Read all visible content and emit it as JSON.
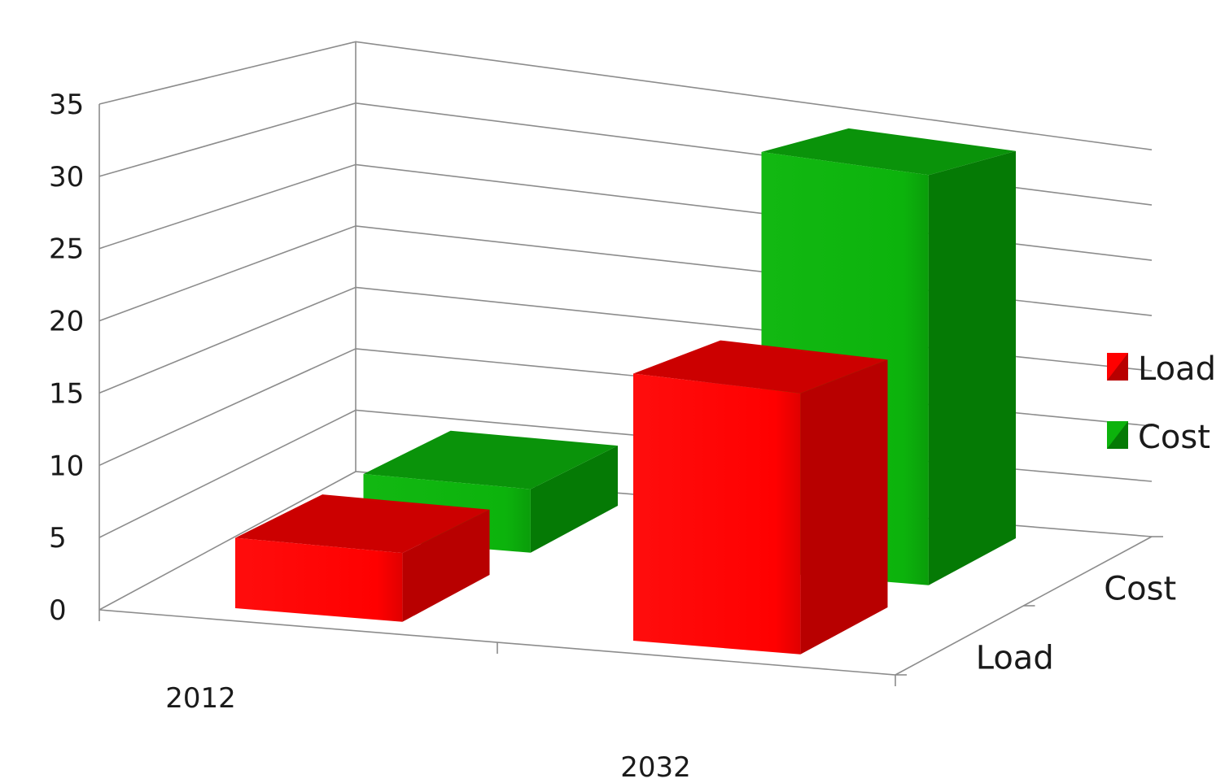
{
  "chart_data": {
    "type": "bar",
    "subtype": "3d-column",
    "title": "",
    "xlabel": "",
    "ylabel": "",
    "categories": [
      "2012",
      "2032"
    ],
    "depth_labels": [
      "Load",
      "Cost"
    ],
    "series": [
      {
        "name": "Load",
        "values": [
          5,
          20
        ],
        "color": "#ff0000",
        "side_color": "#b80000",
        "top_color": "#cc0000"
      },
      {
        "name": "Cost",
        "values": [
          5,
          34
        ],
        "color": "#0cb30c",
        "side_color": "#057a05",
        "top_color": "#0a930a"
      }
    ],
    "y_ticks": [
      "0",
      "5",
      "10",
      "15",
      "20",
      "25",
      "30",
      "35"
    ],
    "ylim": [
      0,
      35
    ],
    "grid": true,
    "legend": {
      "position": "right",
      "entries": [
        "Load",
        "Cost"
      ]
    }
  }
}
